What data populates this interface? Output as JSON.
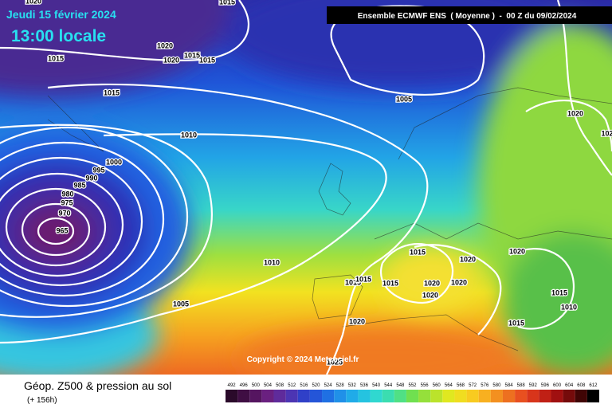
{
  "header": {
    "date": "Jeudi 15 février 2024",
    "time": "13:00 locale",
    "model": "Ensemble ECMWF ENS  ( Moyenne )  -  00 Z du 09/02/2024"
  },
  "map": {
    "isobar_labels": [
      "1020",
      "1015",
      "1015",
      "1020",
      "1020",
      "1015",
      "1015",
      "1015",
      "1005",
      "1010",
      "1000",
      "995",
      "990",
      "985",
      "980",
      "975",
      "970",
      "965",
      "1020",
      "102",
      "1010",
      "1005",
      "1015",
      "1020",
      "1020",
      "1015",
      "1015",
      "1015",
      "1020",
      "1020",
      "1020",
      "1015",
      "1010",
      "1015",
      "1020",
      "1025"
    ],
    "copyright": "Copyright © 2024 Meteociel.fr"
  },
  "footer": {
    "title": "Géop. Z500 & pression au sol",
    "lead": "(+ 156h)",
    "scale": [
      492,
      496,
      500,
      504,
      508,
      512,
      516,
      520,
      524,
      528,
      532,
      536,
      540,
      544,
      548,
      552,
      556,
      560,
      564,
      568,
      572,
      576,
      580,
      584,
      588,
      592,
      596,
      600,
      604,
      608,
      612
    ]
  }
}
